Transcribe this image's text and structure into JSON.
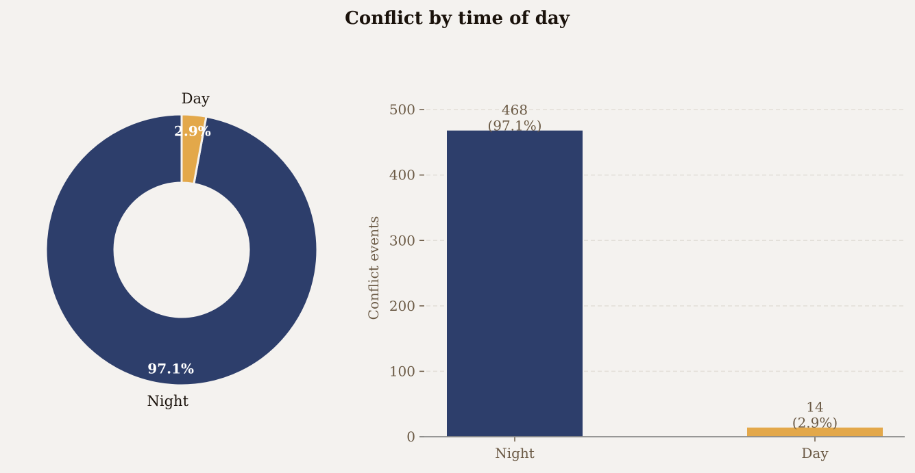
{
  "title": "Conflict by time of day",
  "colors": {
    "background": "#f4f2ef",
    "night": "#2d3e6b",
    "day": "#e3a84a",
    "title_text": "#1a120b",
    "axis_text": "#6b5a45",
    "grid": "#e2ded8",
    "axis_line": "#8a8a8a",
    "label_white": "#ffffff"
  },
  "chart_data": [
    {
      "type": "pie",
      "donut": true,
      "labels": [
        "Night",
        "Day"
      ],
      "values": [
        468,
        14
      ],
      "percent_labels": [
        "97.1%",
        "2.9%"
      ],
      "colors": [
        "#2d3e6b",
        "#e3a84a"
      ]
    },
    {
      "type": "bar",
      "categories": [
        "Night",
        "Day"
      ],
      "values": [
        468,
        14
      ],
      "data_labels": [
        [
          "468",
          "(97.1%)"
        ],
        [
          "14",
          "(2.9%)"
        ]
      ],
      "xlabel": "",
      "ylabel": "Conflict events",
      "ylim": [
        0,
        520
      ],
      "yticks": [
        0,
        100,
        200,
        300,
        400,
        500
      ],
      "grid": true,
      "colors": [
        "#2d3e6b",
        "#e3a84a"
      ]
    }
  ]
}
